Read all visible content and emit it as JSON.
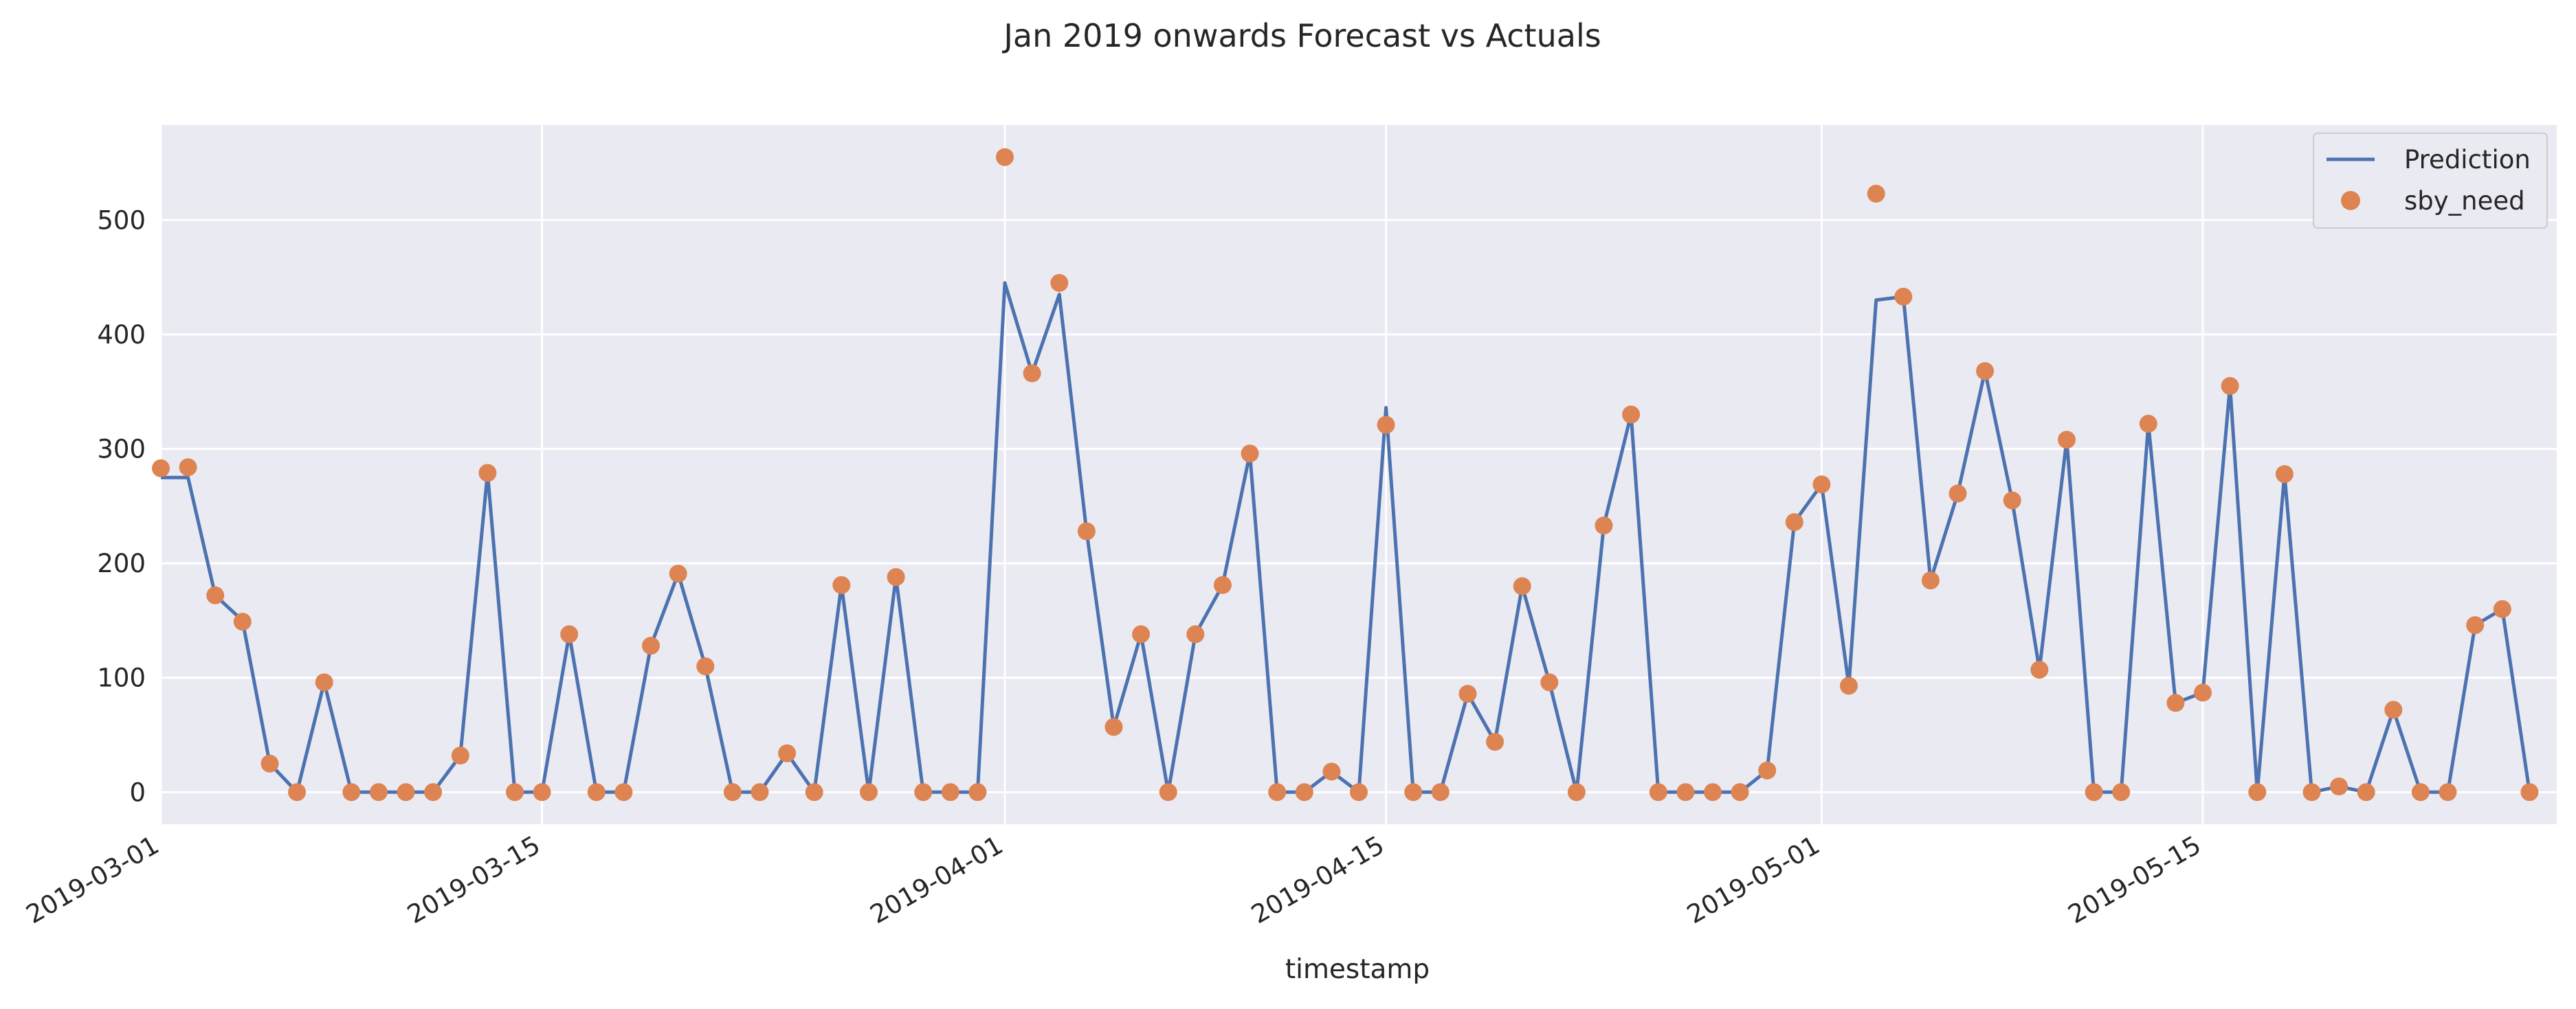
{
  "chart_data": {
    "type": "line",
    "title": "Jan 2019 onwards Forecast vs Actuals",
    "xlabel": "timestamp",
    "ylabel": "",
    "x_range": [
      "2019-03-01",
      "2019-05-28"
    ],
    "ylim": [
      -28,
      583
    ],
    "yticks": [
      0,
      100,
      200,
      300,
      400,
      500
    ],
    "xticks": [
      "2019-03-01",
      "2019-03-15",
      "2019-04-01",
      "2019-04-15",
      "2019-05-01",
      "2019-05-15"
    ],
    "grid": true,
    "legend_position": "top-right",
    "colors": {
      "background": "#eaeaf2",
      "grid": "#ffffff",
      "Prediction": "#4c72b0",
      "sby_need": "#dd8452"
    },
    "series": [
      {
        "name": "Prediction",
        "kind": "line",
        "start_date": "2019-03-01",
        "values": [
          275,
          275,
          172,
          150,
          25,
          0,
          96,
          0,
          0,
          0,
          0,
          32,
          279,
          0,
          0,
          138,
          0,
          0,
          128,
          191,
          110,
          0,
          0,
          34,
          0,
          181,
          0,
          188,
          0,
          0,
          0,
          445,
          366,
          435,
          228,
          57,
          138,
          0,
          138,
          181,
          296,
          0,
          0,
          18,
          0,
          336,
          0,
          0,
          86,
          44,
          180,
          96,
          0,
          233,
          330,
          0,
          0,
          0,
          0,
          19,
          236,
          269,
          93,
          430,
          433,
          185,
          261,
          368,
          255,
          107,
          308,
          0,
          0,
          322,
          78,
          87,
          355,
          0,
          278,
          0,
          5,
          0,
          72,
          0,
          0,
          146,
          160,
          0
        ]
      },
      {
        "name": "sby_need",
        "kind": "scatter",
        "start_date": "2019-03-01",
        "values": [
          283,
          284,
          172,
          149,
          25,
          0,
          96,
          0,
          0,
          0,
          0,
          32,
          279,
          0,
          0,
          138,
          0,
          0,
          128,
          191,
          110,
          0,
          0,
          34,
          0,
          181,
          0,
          188,
          0,
          0,
          0,
          555,
          366,
          445,
          228,
          57,
          138,
          0,
          138,
          181,
          296,
          0,
          0,
          18,
          0,
          321,
          0,
          0,
          86,
          44,
          180,
          96,
          0,
          233,
          330,
          0,
          0,
          0,
          0,
          19,
          236,
          269,
          93,
          523,
          433,
          185,
          261,
          368,
          255,
          107,
          308,
          0,
          0,
          322,
          78,
          87,
          355,
          0,
          278,
          0,
          5,
          0,
          72,
          0,
          0,
          146,
          160,
          0
        ]
      }
    ]
  }
}
